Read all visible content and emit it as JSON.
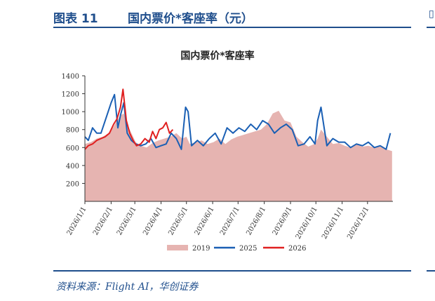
{
  "header": {
    "figure_no": "图表 11",
    "figure_title": "国内票价*客座率（元）"
  },
  "chart_data": {
    "type": "line",
    "title": "国内票价*客座率",
    "xlabel": "",
    "ylabel": "",
    "ylim": [
      0,
      1400
    ],
    "yticks": [
      200,
      400,
      600,
      800,
      1000,
      1200,
      1400
    ],
    "xlim": [
      "2026/1/1",
      "2026/12/31"
    ],
    "xticks": [
      "2026/1/1",
      "2026/2/1",
      "2026/3/1",
      "2026/4/1",
      "2026/5/1",
      "2026/6/1",
      "2026/7/1",
      "2026/8/1",
      "2026/9/1",
      "2026/10/1",
      "2026/11/1",
      "2026/12/1"
    ],
    "grid": false,
    "legend_position": "bottom",
    "series": [
      {
        "name": "2019",
        "style": "area",
        "color": "#e6b4b1",
        "x": [
          "2026/1/1",
          "2026/1/8",
          "2026/1/15",
          "2026/1/22",
          "2026/1/29",
          "2026/2/3",
          "2026/2/8",
          "2026/2/12",
          "2026/2/16",
          "2026/2/20",
          "2026/2/25",
          "2026/3/2",
          "2026/3/8",
          "2026/3/15",
          "2026/3/22",
          "2026/3/29",
          "2026/4/5",
          "2026/4/12",
          "2026/4/19",
          "2026/4/26",
          "2026/5/1",
          "2026/5/5",
          "2026/5/12",
          "2026/5/19",
          "2026/5/26",
          "2026/6/2",
          "2026/6/9",
          "2026/6/16",
          "2026/6/23",
          "2026/6/30",
          "2026/7/7",
          "2026/7/14",
          "2026/7/21",
          "2026/7/28",
          "2026/8/4",
          "2026/8/11",
          "2026/8/18",
          "2026/8/25",
          "2026/9/1",
          "2026/9/8",
          "2026/9/15",
          "2026/9/22",
          "2026/9/29",
          "2026/10/3",
          "2026/10/7",
          "2026/10/14",
          "2026/10/21",
          "2026/10/28",
          "2026/11/4",
          "2026/11/11",
          "2026/11/18",
          "2026/11/25",
          "2026/12/2",
          "2026/12/9",
          "2026/12/16",
          "2026/12/23",
          "2026/12/30"
        ],
        "values": [
          640,
          660,
          700,
          720,
          760,
          820,
          900,
          960,
          980,
          860,
          760,
          660,
          620,
          600,
          650,
          680,
          700,
          720,
          760,
          700,
          720,
          640,
          660,
          680,
          640,
          660,
          700,
          640,
          690,
          720,
          740,
          760,
          780,
          800,
          860,
          980,
          1010,
          900,
          880,
          720,
          660,
          610,
          640,
          700,
          800,
          720,
          640,
          650,
          620,
          600,
          640,
          610,
          620,
          600,
          610,
          580,
          560
        ]
      },
      {
        "name": "2025",
        "style": "line",
        "color": "#1a5fb4",
        "x": [
          "2026/1/1",
          "2026/1/5",
          "2026/1/10",
          "2026/1/15",
          "2026/1/20",
          "2026/1/25",
          "2026/2/1",
          "2026/2/5",
          "2026/2/9",
          "2026/2/12",
          "2026/2/16",
          "2026/2/20",
          "2026/2/25",
          "2026/3/2",
          "2026/3/8",
          "2026/3/14",
          "2026/3/20",
          "2026/3/26",
          "2026/4/1",
          "2026/4/7",
          "2026/4/13",
          "2026/4/19",
          "2026/4/25",
          "2026/4/30",
          "2026/5/3",
          "2026/5/7",
          "2026/5/14",
          "2026/5/21",
          "2026/5/28",
          "2026/6/4",
          "2026/6/11",
          "2026/6/18",
          "2026/6/25",
          "2026/7/2",
          "2026/7/9",
          "2026/7/16",
          "2026/7/23",
          "2026/7/30",
          "2026/8/6",
          "2026/8/13",
          "2026/8/20",
          "2026/8/27",
          "2026/9/3",
          "2026/9/10",
          "2026/9/17",
          "2026/9/24",
          "2026/9/30",
          "2026/10/3",
          "2026/10/7",
          "2026/10/14",
          "2026/10/21",
          "2026/10/28",
          "2026/11/4",
          "2026/11/11",
          "2026/11/18",
          "2026/11/25",
          "2026/12/2",
          "2026/12/9",
          "2026/12/16",
          "2026/12/23",
          "2026/12/28"
        ],
        "values": [
          720,
          680,
          820,
          760,
          760,
          900,
          1100,
          1190,
          820,
          960,
          1100,
          760,
          680,
          640,
          620,
          640,
          700,
          600,
          620,
          640,
          760,
          700,
          580,
          1050,
          1000,
          620,
          680,
          620,
          700,
          760,
          640,
          820,
          760,
          820,
          780,
          860,
          800,
          900,
          860,
          760,
          820,
          860,
          800,
          620,
          640,
          720,
          640,
          900,
          1050,
          620,
          700,
          660,
          660,
          600,
          640,
          620,
          660,
          600,
          620,
          580,
          760
        ]
      },
      {
        "name": "2026",
        "style": "line",
        "color": "#e02020",
        "x": [
          "2026/1/1",
          "2026/1/5",
          "2026/1/10",
          "2026/1/15",
          "2026/1/20",
          "2026/1/25",
          "2026/1/30",
          "2026/2/4",
          "2026/2/8",
          "2026/2/12",
          "2026/2/15",
          "2026/2/19",
          "2026/2/23",
          "2026/2/27",
          "2026/3/3",
          "2026/3/8",
          "2026/3/13",
          "2026/3/18",
          "2026/3/22",
          "2026/3/26",
          "2026/3/30",
          "2026/4/3",
          "2026/4/7",
          "2026/4/11",
          "2026/4/15"
        ],
        "values": [
          580,
          620,
          640,
          680,
          700,
          720,
          760,
          860,
          920,
          1050,
          1250,
          900,
          760,
          680,
          620,
          640,
          700,
          660,
          780,
          700,
          800,
          820,
          880,
          760,
          800
        ]
      }
    ]
  },
  "footer": {
    "source": "资料来源：Flight AI，华创证券"
  }
}
